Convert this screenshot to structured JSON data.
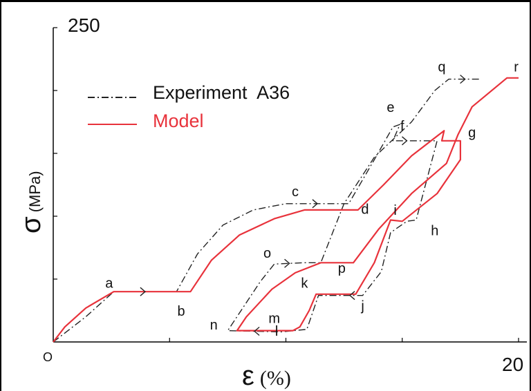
{
  "chart_data": {
    "type": "line",
    "title": "",
    "xlabel": {
      "symbol": "ε",
      "unit": "(%)"
    },
    "ylabel": {
      "symbol": "σ",
      "unit": "(MPa)"
    },
    "xlim": [
      0,
      20
    ],
    "ylim": [
      0,
      250
    ],
    "x_tick_labels": {
      "origin": "O",
      "max": "20"
    },
    "y_tick_labels": {
      "max": "250"
    },
    "grid": false,
    "legend_position": "top-left",
    "series": [
      {
        "name": "Experiment  A36",
        "style": "dash-dot",
        "color": "#222222",
        "points": [
          [
            0.0,
            0
          ],
          [
            1.4,
            20
          ],
          [
            2.6,
            40
          ],
          [
            5.3,
            40
          ],
          [
            6.2,
            70
          ],
          [
            7.3,
            93
          ],
          [
            8.6,
            105
          ],
          [
            10.0,
            110
          ],
          [
            12.7,
            110
          ],
          [
            13.8,
            145
          ],
          [
            14.6,
            171
          ],
          [
            14.9,
            173
          ],
          [
            14.6,
            160
          ],
          [
            15.8,
            160
          ],
          [
            16.5,
            160
          ],
          [
            15.6,
            97
          ],
          [
            15.2,
            96
          ],
          [
            14.5,
            87
          ],
          [
            14.1,
            56
          ],
          [
            13.3,
            37
          ],
          [
            12.2,
            37
          ],
          [
            11.4,
            37
          ],
          [
            10.9,
            10
          ],
          [
            9.8,
            8
          ],
          [
            7.5,
            9
          ],
          [
            8.9,
            48
          ],
          [
            9.5,
            62
          ],
          [
            10.8,
            63
          ],
          [
            11.5,
            63
          ],
          [
            12.5,
            110
          ],
          [
            13.8,
            147
          ],
          [
            15.4,
            175
          ],
          [
            16.4,
            200
          ],
          [
            17.0,
            209
          ],
          [
            18.4,
            209
          ]
        ]
      },
      {
        "name": "Model",
        "style": "solid",
        "color": "#e8323b",
        "points": [
          [
            0.0,
            0
          ],
          [
            0.5,
            12
          ],
          [
            1.4,
            27
          ],
          [
            2.6,
            40
          ],
          [
            5.9,
            40
          ],
          [
            6.8,
            65
          ],
          [
            8.0,
            85
          ],
          [
            9.5,
            98
          ],
          [
            10.8,
            105
          ],
          [
            13.1,
            105
          ],
          [
            14.2,
            125
          ],
          [
            15.4,
            148
          ],
          [
            16.8,
            168
          ],
          [
            16.7,
            160
          ],
          [
            17.5,
            160
          ],
          [
            17.5,
            145
          ],
          [
            16.5,
            118
          ],
          [
            15.0,
            96
          ],
          [
            14.5,
            97
          ],
          [
            13.8,
            63
          ],
          [
            13.0,
            38
          ],
          [
            12.1,
            38
          ],
          [
            11.3,
            38
          ],
          [
            11.0,
            25
          ],
          [
            10.6,
            12
          ],
          [
            10.3,
            9
          ],
          [
            7.9,
            9
          ],
          [
            8.3,
            20
          ],
          [
            9.4,
            42
          ],
          [
            10.4,
            55
          ],
          [
            11.5,
            63
          ],
          [
            12.9,
            63
          ],
          [
            14.0,
            90
          ],
          [
            15.4,
            118
          ],
          [
            16.9,
            142
          ],
          [
            17.4,
            165
          ],
          [
            18.0,
            187
          ],
          [
            19.5,
            210
          ],
          [
            20.0,
            210
          ]
        ]
      }
    ],
    "annotations": [
      {
        "text": "a",
        "x": 2.4,
        "y": 43
      },
      {
        "text": "b",
        "x": 5.5,
        "y": 21
      },
      {
        "text": "c",
        "x": 10.4,
        "y": 116
      },
      {
        "text": "d",
        "x": 13.4,
        "y": 102
      },
      {
        "text": "e",
        "x": 14.5,
        "y": 183
      },
      {
        "text": "f",
        "x": 15.0,
        "y": 168
      },
      {
        "text": "g",
        "x": 18.0,
        "y": 163
      },
      {
        "text": "h",
        "x": 16.4,
        "y": 85
      },
      {
        "text": "i",
        "x": 14.7,
        "y": 101
      },
      {
        "text": "j",
        "x": 13.3,
        "y": 25
      },
      {
        "text": "k",
        "x": 10.8,
        "y": 43
      },
      {
        "text": "l",
        "x": 9.6,
        "y": 5
      },
      {
        "text": "m",
        "x": 9.5,
        "y": 15
      },
      {
        "text": "n",
        "x": 6.9,
        "y": 10
      },
      {
        "text": "o",
        "x": 9.2,
        "y": 67
      },
      {
        "text": "p",
        "x": 12.4,
        "y": 55
      },
      {
        "text": "q",
        "x": 16.7,
        "y": 215
      },
      {
        "text": "r",
        "x": 19.9,
        "y": 215
      }
    ]
  }
}
